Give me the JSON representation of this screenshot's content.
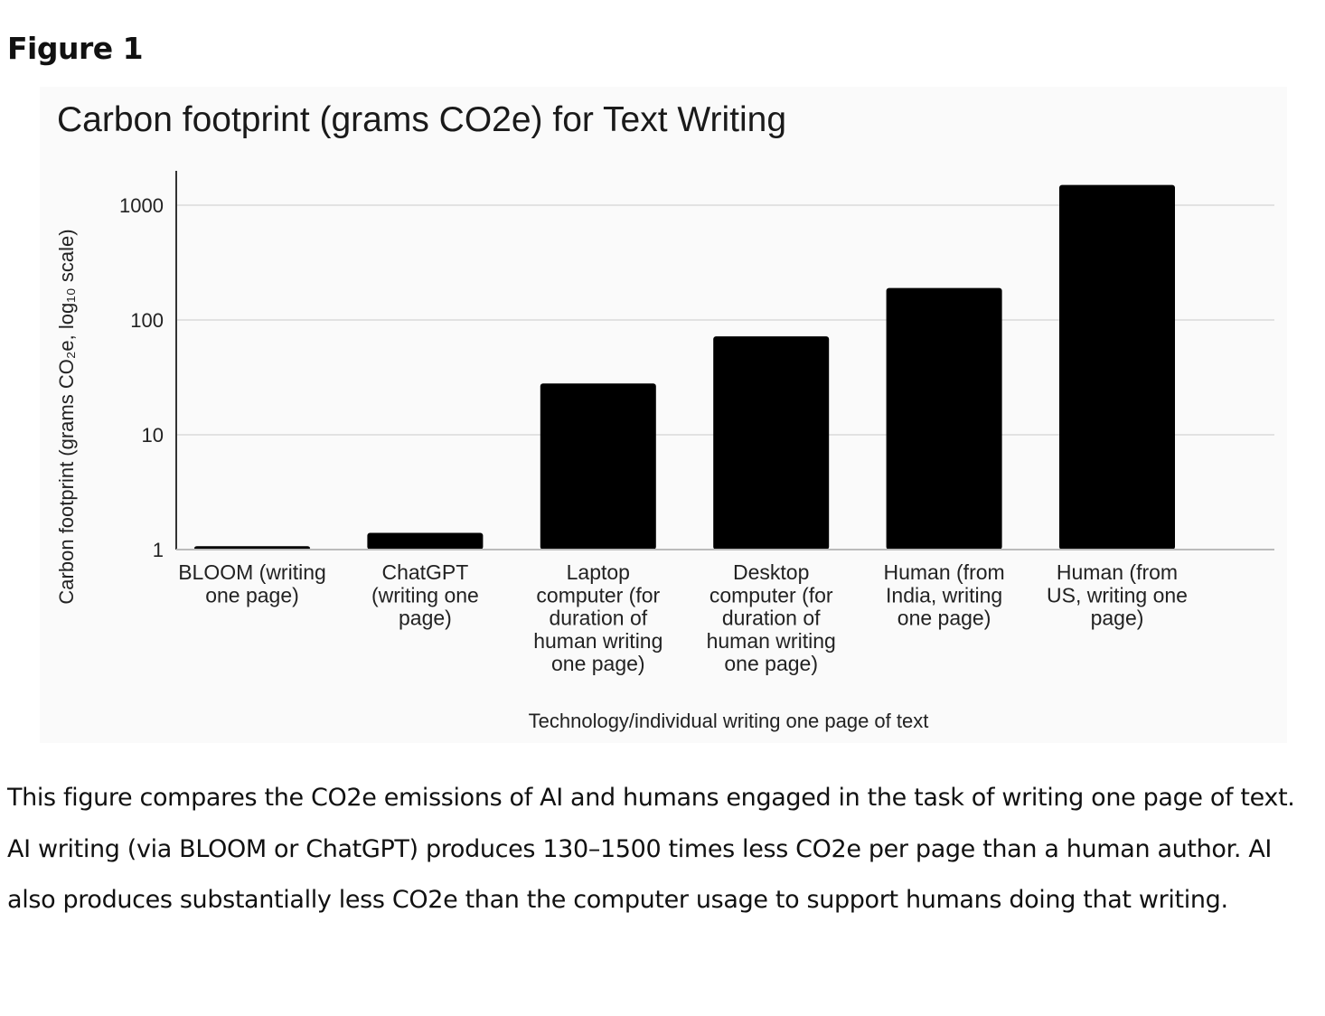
{
  "figure_label": "Figure 1",
  "caption": "This figure compares the CO2e emissions of AI and humans engaged in the task of writing one page of text. AI writing (via BLOOM or ChatGPT) produces 130–1500 times less CO2e per page than a human author. AI also produces substantially less CO2e than the computer usage to support humans doing that writing.",
  "colors": {
    "bar": "#000000",
    "gridline": "#d9d9d9",
    "axis": "#333333",
    "chart_background": "#fafafa"
  },
  "chart_data": {
    "type": "bar",
    "title": "Carbon footprint (grams CO2e) for Text Writing",
    "xlabel": "Technology/individual writing one page of text",
    "ylabel": "Carbon footprint (grams CO₂e, log₁₀ scale)",
    "yscale": "log10",
    "ylim": [
      1,
      2000
    ],
    "yticks": [
      1,
      10,
      100,
      1000
    ],
    "ytick_labels": [
      "1",
      "10",
      "100",
      "1000"
    ],
    "grid": true,
    "legend": "none",
    "categories": [
      [
        "BLOOM (writing",
        "one page)"
      ],
      [
        "ChatGPT",
        "(writing one",
        "page)"
      ],
      [
        "Laptop",
        "computer (for",
        "duration of",
        "human writing",
        "one page)"
      ],
      [
        "Desktop",
        "computer (for",
        "duration of",
        "human writing",
        "one page)"
      ],
      [
        "Human (from",
        "India, writing",
        "one page)"
      ],
      [
        "Human (from",
        "US, writing one",
        "page)"
      ]
    ],
    "values": [
      1.07,
      1.4,
      28,
      72,
      190,
      1500
    ]
  }
}
